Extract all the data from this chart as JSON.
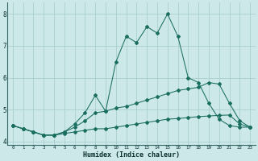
{
  "xlabel": "Humidex (Indice chaleur)",
  "x": [
    0,
    1,
    2,
    3,
    4,
    5,
    6,
    7,
    8,
    9,
    10,
    11,
    12,
    13,
    14,
    15,
    16,
    17,
    18,
    19,
    20,
    21,
    22,
    23
  ],
  "line1_y": [
    4.5,
    4.4,
    4.3,
    4.2,
    4.2,
    4.25,
    4.3,
    4.35,
    4.4,
    4.4,
    4.45,
    4.5,
    4.55,
    4.6,
    4.65,
    4.7,
    4.72,
    4.75,
    4.78,
    4.8,
    4.82,
    4.83,
    4.55,
    4.45
  ],
  "line2_y": [
    4.5,
    4.4,
    4.3,
    4.2,
    4.2,
    4.3,
    4.45,
    4.65,
    4.9,
    4.95,
    5.05,
    5.1,
    5.2,
    5.3,
    5.4,
    5.5,
    5.6,
    5.65,
    5.7,
    5.85,
    5.8,
    5.2,
    4.65,
    4.45
  ],
  "line3_y": [
    4.5,
    4.4,
    4.3,
    4.2,
    4.2,
    4.3,
    4.55,
    4.9,
    5.45,
    4.95,
    6.5,
    7.3,
    7.1,
    7.6,
    7.4,
    8.0,
    7.3,
    6.0,
    5.85,
    5.2,
    4.7,
    4.5,
    4.45,
    4.45
  ],
  "background_color": "#cce8e8",
  "grid_color": "#aacece",
  "line_color": "#1a6e60",
  "ylim": [
    3.9,
    8.35
  ],
  "yticks": [
    4,
    5,
    6,
    7,
    8
  ],
  "xticks": [
    0,
    1,
    2,
    3,
    4,
    5,
    6,
    7,
    8,
    9,
    10,
    11,
    12,
    13,
    14,
    15,
    16,
    17,
    18,
    19,
    20,
    21,
    22,
    23
  ],
  "xlim": [
    -0.5,
    23.5
  ]
}
